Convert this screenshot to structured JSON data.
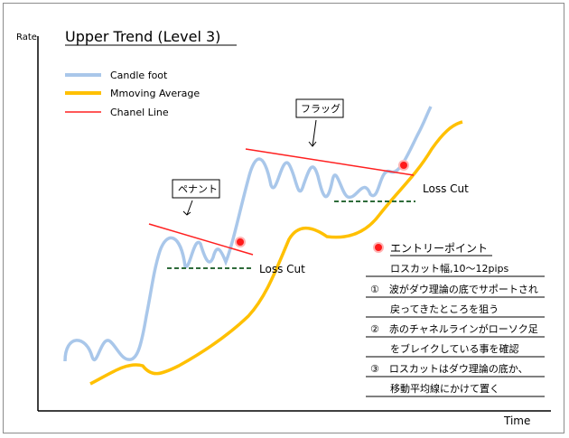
{
  "title": "Upper Trend (Level 3)",
  "axes": {
    "y_label": "Rate",
    "x_label": "Time"
  },
  "legend": [
    {
      "label": "Candle foot",
      "color": "#a9c7ea"
    },
    {
      "label": "Mmoving Average",
      "color": "#ffc000"
    },
    {
      "label": "Chanel Line",
      "color": "#ff2020"
    }
  ],
  "callouts": {
    "pennant": "ペナント",
    "flag": "フラッグ"
  },
  "loss_cut_labels": [
    "Loss Cut",
    "Loss Cut"
  ],
  "entry_legend": "エントリーポイント",
  "notes": [
    "ロスカット幅,10～12pips",
    "①　波がダウ理論の底でサポートされ",
    "戻ってきたところを狙う",
    "②　赤のチャネルラインがローソク足",
    "をブレイクしている事を確認",
    "③　ロスカットはダウ理論の底か、",
    "移動平均線にかけて置く"
  ],
  "colors": {
    "candle": "#a9c7ea",
    "moving_average": "#ffc000",
    "channel": "#ff2020",
    "entry": "#ff1a1a",
    "loss_cut": "#2e6b3a"
  }
}
